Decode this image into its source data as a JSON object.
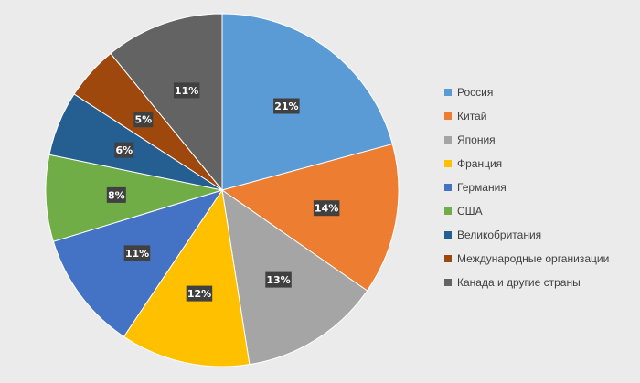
{
  "chart_data": {
    "type": "pie",
    "title": "",
    "legend": "right",
    "slices": [
      {
        "label": "Россия",
        "value": 21,
        "value_label": "21%",
        "color": "#5b9bd5"
      },
      {
        "label": "Китай",
        "value": 14,
        "value_label": "14%",
        "color": "#ed7d31"
      },
      {
        "label": "Япония",
        "value": 13,
        "value_label": "13%",
        "color": "#a5a5a5"
      },
      {
        "label": "Франция",
        "value": 12,
        "value_label": "12%",
        "color": "#ffc000"
      },
      {
        "label": "Германия",
        "value": 11,
        "value_label": "11%",
        "color": "#4472c4"
      },
      {
        "label": "США",
        "value": 8,
        "value_label": "8%",
        "color": "#70ad47"
      },
      {
        "label": "Великобритания",
        "value": 6,
        "value_label": "6%",
        "color": "#255e91"
      },
      {
        "label": "Международные организации",
        "value": 5,
        "value_label": "5%",
        "color": "#9e480e"
      },
      {
        "label": "Канада и другие страны",
        "value": 11,
        "value_label": "11%",
        "color": "#636363"
      }
    ]
  }
}
